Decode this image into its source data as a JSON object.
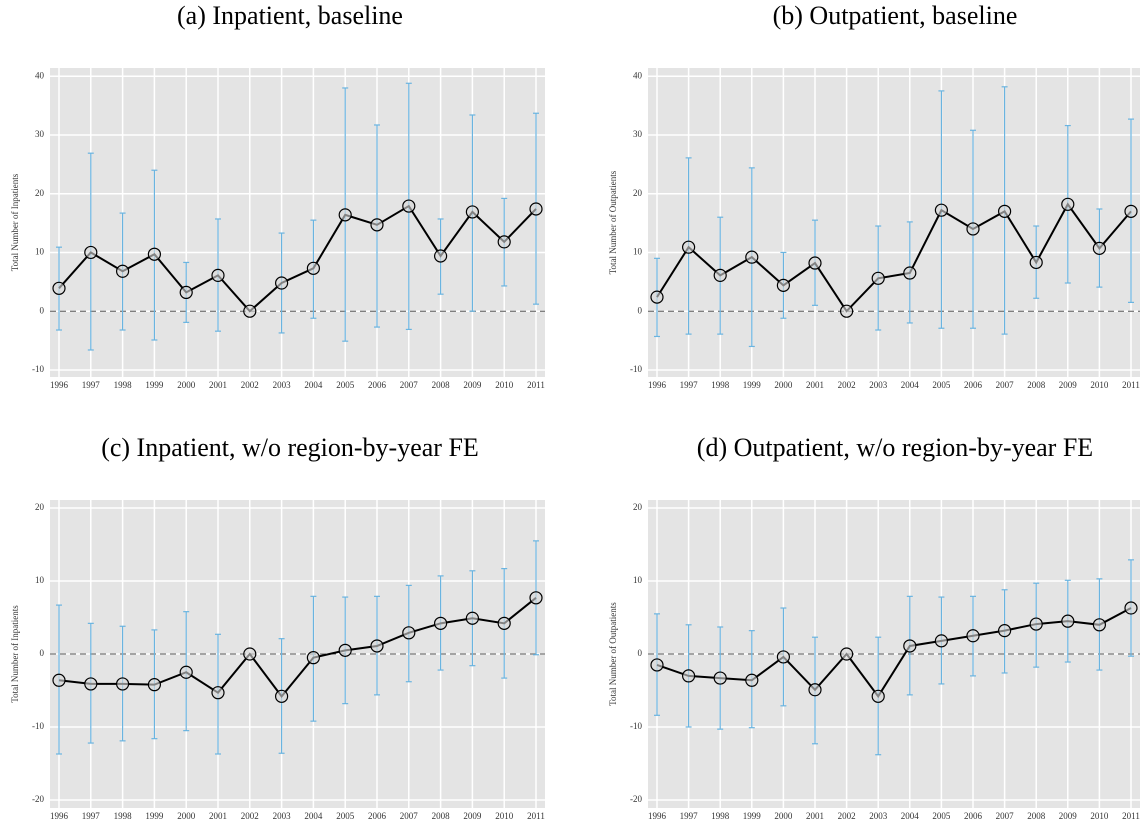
{
  "chart_data": [
    {
      "type": "line",
      "title": "(a) Inpatient, baseline",
      "y_label": "Total Number of Inpatients",
      "categories": [
        "1996",
        "1997",
        "1998",
        "1999",
        "2000",
        "2001",
        "2002",
        "2003",
        "2004",
        "2005",
        "2006",
        "2007",
        "2008",
        "2009",
        "2010",
        "2011"
      ],
      "values": [
        3.9,
        10,
        6.8,
        9.7,
        3.2,
        6.1,
        0,
        4.8,
        7.3,
        16.4,
        14.7,
        17.9,
        9.4,
        16.9,
        11.8,
        17.4
      ],
      "ci_low": [
        -3.2,
        -6.6,
        -3.2,
        -4.9,
        -1.9,
        -3.4,
        null,
        -3.7,
        -1.2,
        -5.1,
        -2.7,
        -3.1,
        2.9,
        0,
        4.3,
        1.2
      ],
      "ci_high": [
        10.9,
        26.9,
        16.7,
        24.0,
        8.3,
        15.7,
        null,
        13.3,
        15.5,
        38,
        31.7,
        38.8,
        15.7,
        33.4,
        19.2,
        33.7
      ],
      "ylim": [
        -11.2,
        41.4
      ],
      "yticks": [
        -10,
        0,
        10,
        20,
        30,
        40
      ],
      "reference_line": 0,
      "grid": true,
      "color": "#000000",
      "error_color": "#6ab4e0"
    },
    {
      "type": "line",
      "title": "(b) Outpatient, baseline",
      "y_label": "Total Number of Outpatients",
      "categories": [
        "1996",
        "1997",
        "1998",
        "1999",
        "2000",
        "2001",
        "2002",
        "2003",
        "2004",
        "2005",
        "2006",
        "2007",
        "2008",
        "2009",
        "2010",
        "2011"
      ],
      "values": [
        2.4,
        10.9,
        6.1,
        9.2,
        4.4,
        8.2,
        0,
        5.6,
        6.5,
        17.2,
        14,
        17,
        8.3,
        18.2,
        10.7,
        17
      ],
      "ci_low": [
        -4.3,
        -3.9,
        -3.9,
        -6,
        -1.2,
        1,
        null,
        -3.2,
        -2,
        -2.9,
        -2.9,
        -3.9,
        2.2,
        4.8,
        4.1,
        1.5
      ],
      "ci_high": [
        9,
        26.1,
        16,
        24.4,
        10,
        15.5,
        null,
        14.5,
        15.2,
        37.5,
        30.8,
        38.2,
        14.5,
        31.6,
        17.4,
        32.7
      ],
      "ylim": [
        -11.2,
        41.4
      ],
      "yticks": [
        -10,
        0,
        10,
        20,
        30,
        40
      ],
      "reference_line": 0,
      "grid": true,
      "color": "#000000",
      "error_color": "#6ab4e0"
    },
    {
      "type": "line",
      "title": "(c) Inpatient, w/o region-by-year FE",
      "y_label": "Total Number of Inpatients",
      "categories": [
        "1996",
        "1997",
        "1998",
        "1999",
        "2000",
        "2001",
        "2002",
        "2003",
        "2004",
        "2005",
        "2006",
        "2007",
        "2008",
        "2009",
        "2010",
        "2011"
      ],
      "values": [
        -3.6,
        -4.1,
        -4.1,
        -4.2,
        -2.5,
        -5.3,
        0,
        -5.8,
        -0.5,
        0.5,
        1.1,
        2.9,
        4.2,
        4.9,
        4.2,
        7.7
      ],
      "ci_low": [
        -13.7,
        -12.2,
        -11.9,
        -11.6,
        -10.5,
        -13.7,
        null,
        -13.6,
        -9.2,
        -6.8,
        -5.6,
        -3.8,
        -2.2,
        -1.6,
        -3.3,
        -0.1
      ],
      "ci_high": [
        6.7,
        4.2,
        3.8,
        3.3,
        5.8,
        2.7,
        null,
        2.1,
        7.9,
        7.8,
        7.9,
        9.4,
        10.7,
        11.4,
        11.7,
        15.5
      ],
      "ylim": [
        -21.1,
        21.1
      ],
      "yticks": [
        -20,
        -10,
        0,
        10,
        20
      ],
      "reference_line": 0,
      "grid": true,
      "color": "#000000",
      "error_color": "#6ab4e0"
    },
    {
      "type": "line",
      "title": "(d) Outpatient, w/o region-by-year FE",
      "y_label": "Total Number of Outpatients",
      "categories": [
        "1996",
        "1997",
        "1998",
        "1999",
        "2000",
        "2001",
        "2002",
        "2003",
        "2004",
        "2005",
        "2006",
        "2007",
        "2008",
        "2009",
        "2010",
        "2011"
      ],
      "values": [
        -1.5,
        -3,
        -3.3,
        -3.6,
        -0.4,
        -4.9,
        0,
        -5.8,
        1.1,
        1.8,
        2.5,
        3.2,
        4.1,
        4.5,
        4,
        6.3
      ],
      "ci_low": [
        -8.4,
        -10,
        -10.3,
        -10.1,
        -7.1,
        -12.3,
        null,
        -13.8,
        -5.6,
        -4.1,
        -3,
        -2.6,
        -1.8,
        -1.1,
        -2.2,
        -0.3
      ],
      "ci_high": [
        5.5,
        4,
        3.7,
        3.2,
        6.3,
        2.3,
        null,
        2.3,
        7.9,
        7.8,
        7.9,
        8.8,
        9.7,
        10.1,
        10.3,
        12.9
      ],
      "ylim": [
        -21.1,
        21.1
      ],
      "yticks": [
        -20,
        -10,
        0,
        10,
        20
      ],
      "reference_line": 0,
      "grid": true,
      "color": "#000000",
      "error_color": "#6ab4e0"
    }
  ]
}
